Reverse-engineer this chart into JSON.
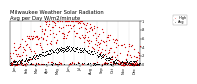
{
  "title": "Milwaukee Weather Solar Radiation",
  "subtitle": "Avg per Day W/m2/minute",
  "title_fontsize": 3.8,
  "bg_color": "#ffffff",
  "plot_bg_color": "#ffffff",
  "dot_color_high": "#cc0000",
  "dot_color_avg": "#000000",
  "legend_label_high": "High",
  "legend_label_avg": "Avg",
  "tick_fontsize": 2.5,
  "ylim": [
    0,
    1.0
  ],
  "num_points": 365,
  "grid_color": "#bbbbbb",
  "month_boundaries": [
    0,
    31,
    59,
    90,
    120,
    151,
    181,
    212,
    243,
    273,
    304,
    334,
    365
  ],
  "month_centers": [
    15,
    46,
    74,
    105,
    135,
    166,
    196,
    227,
    258,
    288,
    319,
    349
  ],
  "month_labels": [
    "Jan",
    "Feb",
    "Mar",
    "Apr",
    "May",
    "Jun",
    "Jul",
    "Aug",
    "Sep",
    "Oct",
    "Nov",
    "Dec"
  ],
  "y_ticks": [
    0.0,
    0.2,
    0.4,
    0.6,
    0.8,
    1.0
  ],
  "y_labels": [
    "0",
    ".2",
    ".4",
    ".6",
    ".8",
    "1"
  ],
  "dot_size_high": 0.8,
  "dot_size_avg": 0.5,
  "seed": 99
}
